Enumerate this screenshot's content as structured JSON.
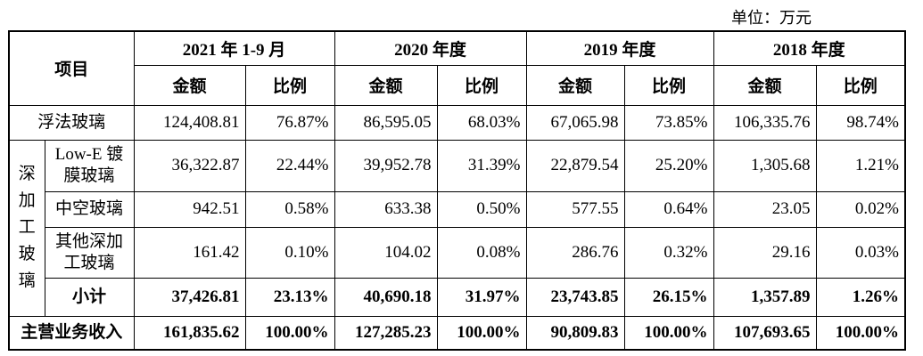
{
  "unit": "单位：万元",
  "table": {
    "header": {
      "item": "项目",
      "periods": [
        "2021 年 1-9 月",
        "2020 年度",
        "2019 年度",
        "2018 年度"
      ],
      "subheaders": [
        "金额",
        "比例",
        "金额",
        "比例",
        "金额",
        "比例",
        "金额",
        "比例"
      ]
    },
    "rows": [
      {
        "label": "浮法玻璃",
        "cells": [
          "124,408.81",
          "76.87%",
          "86,595.05",
          "68.03%",
          "67,065.98",
          "73.85%",
          "106,335.76",
          "98.74%"
        ]
      }
    ],
    "group": {
      "label": "深加工玻璃",
      "rows": [
        {
          "label": "Low-E 镀膜玻璃",
          "cells": [
            "36,322.87",
            "22.44%",
            "39,952.78",
            "31.39%",
            "22,879.54",
            "25.20%",
            "1,305.68",
            "1.21%"
          ]
        },
        {
          "label": "中空玻璃",
          "cells": [
            "942.51",
            "0.58%",
            "633.38",
            "0.50%",
            "577.55",
            "0.64%",
            "23.05",
            "0.02%"
          ]
        },
        {
          "label": "其他深加工玻璃",
          "cells": [
            "161.42",
            "0.10%",
            "104.02",
            "0.08%",
            "286.76",
            "0.32%",
            "29.16",
            "0.03%"
          ]
        },
        {
          "label": "小计",
          "cells": [
            "37,426.81",
            "23.13%",
            "40,690.18",
            "31.97%",
            "23,743.85",
            "26.15%",
            "1,357.89",
            "1.26%"
          ]
        }
      ]
    },
    "total": {
      "label": "主营业务收入",
      "cells": [
        "161,835.62",
        "100.00%",
        "127,285.23",
        "100.00%",
        "90,809.83",
        "100.00%",
        "107,693.65",
        "100.00%"
      ]
    }
  }
}
